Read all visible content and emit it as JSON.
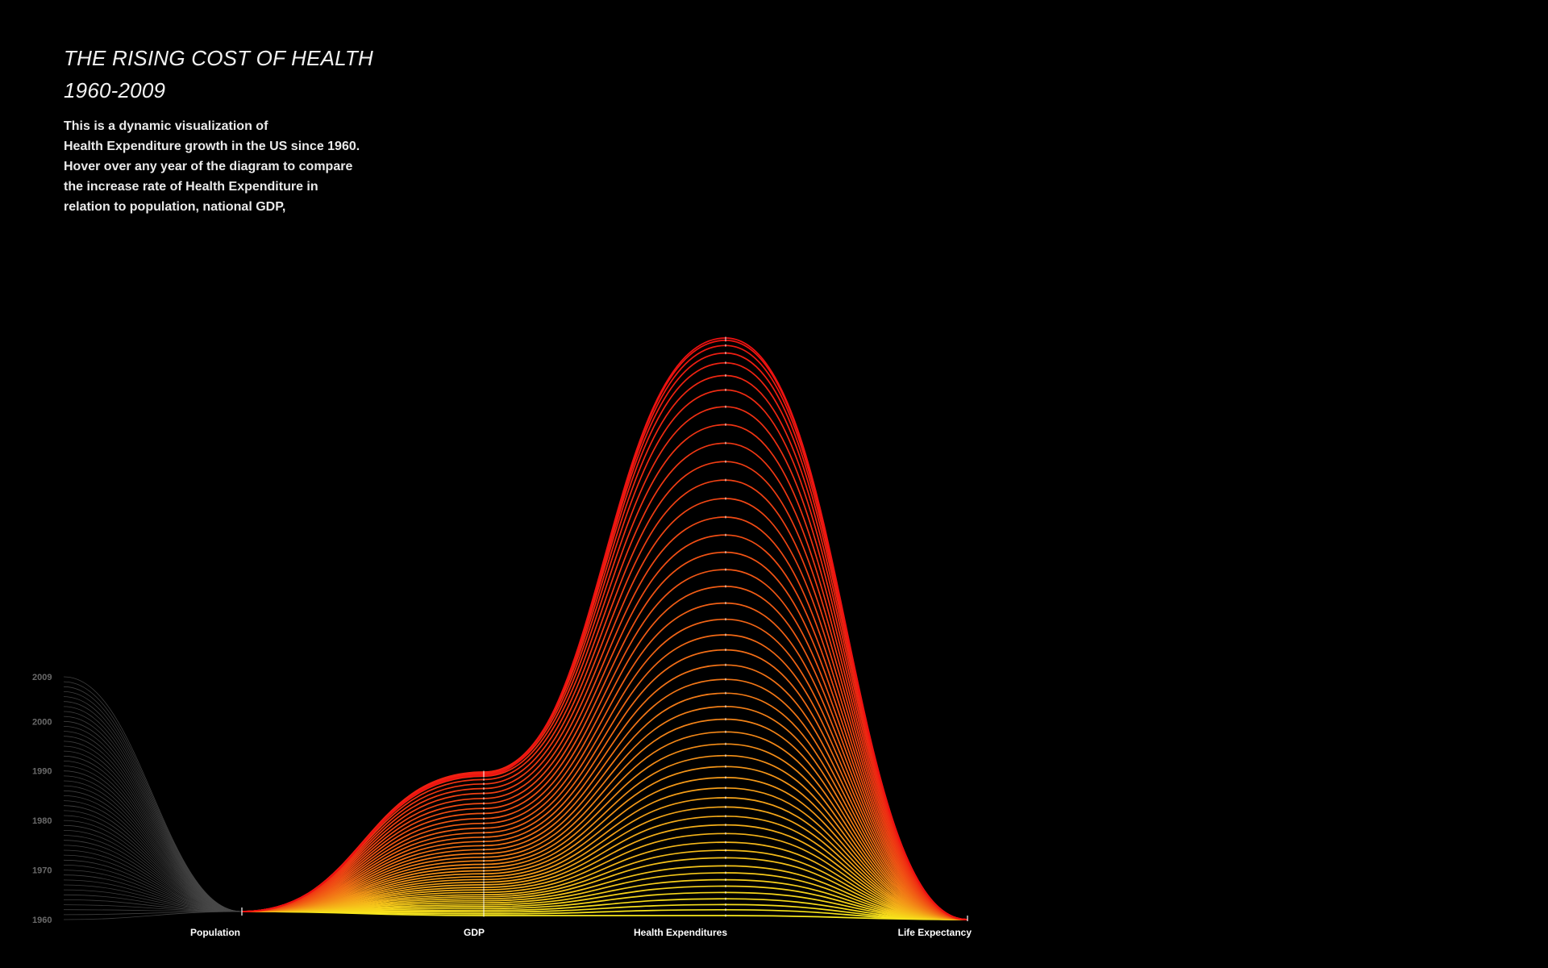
{
  "header": {
    "title": "THE RISING COST OF HEALTH",
    "subtitle": "1960-2009",
    "intro_lines": [
      "This is a dynamic visualization of",
      "Health Expenditure growth in the US since 1960.",
      "Hover over any year of the diagram to compare",
      "the increase rate of Health Expenditure in",
      "relation to population, national GDP,"
    ]
  },
  "colors": {
    "background": "#000000",
    "early_year": "#f7e81c",
    "late_year": "#ee1111",
    "year_scale": "#4a4a4a"
  },
  "chart_data": {
    "type": "line",
    "title": "THE RISING COST OF HEALTH",
    "subtitle": "1960-2009",
    "axes": [
      "Population",
      "GDP",
      "Health Expenditures",
      "Life Expectancy"
    ],
    "year_range": [
      1960,
      2009
    ],
    "year_ticks": [
      "2009",
      "2000",
      "1990",
      "1980",
      "1970",
      "1960"
    ],
    "series_count": 50,
    "gdp_index": [
      0.0,
      0.012,
      0.024,
      0.036,
      0.049,
      0.062,
      0.075,
      0.089,
      0.103,
      0.117,
      0.131,
      0.145,
      0.162,
      0.179,
      0.196,
      0.214,
      0.232,
      0.251,
      0.271,
      0.291,
      0.312,
      0.334,
      0.357,
      0.381,
      0.406,
      0.432,
      0.459,
      0.487,
      0.516,
      0.546,
      0.577,
      0.609,
      0.642,
      0.676,
      0.711,
      0.746,
      0.781,
      0.816,
      0.851,
      0.885,
      0.917,
      0.947,
      0.97,
      0.986,
      0.996,
      1.0,
      0.994,
      0.982,
      0.976,
      0.978
    ],
    "health_expenditure_index": [
      0.0,
      0.01,
      0.019,
      0.029,
      0.04,
      0.051,
      0.062,
      0.074,
      0.086,
      0.1,
      0.113,
      0.127,
      0.142,
      0.157,
      0.172,
      0.188,
      0.204,
      0.221,
      0.239,
      0.258,
      0.277,
      0.297,
      0.318,
      0.34,
      0.362,
      0.385,
      0.409,
      0.434,
      0.46,
      0.486,
      0.513,
      0.541,
      0.57,
      0.599,
      0.629,
      0.659,
      0.69,
      0.722,
      0.754,
      0.786,
      0.818,
      0.85,
      0.881,
      0.91,
      0.935,
      0.957,
      0.974,
      0.987,
      0.996,
      1.0
    ]
  }
}
